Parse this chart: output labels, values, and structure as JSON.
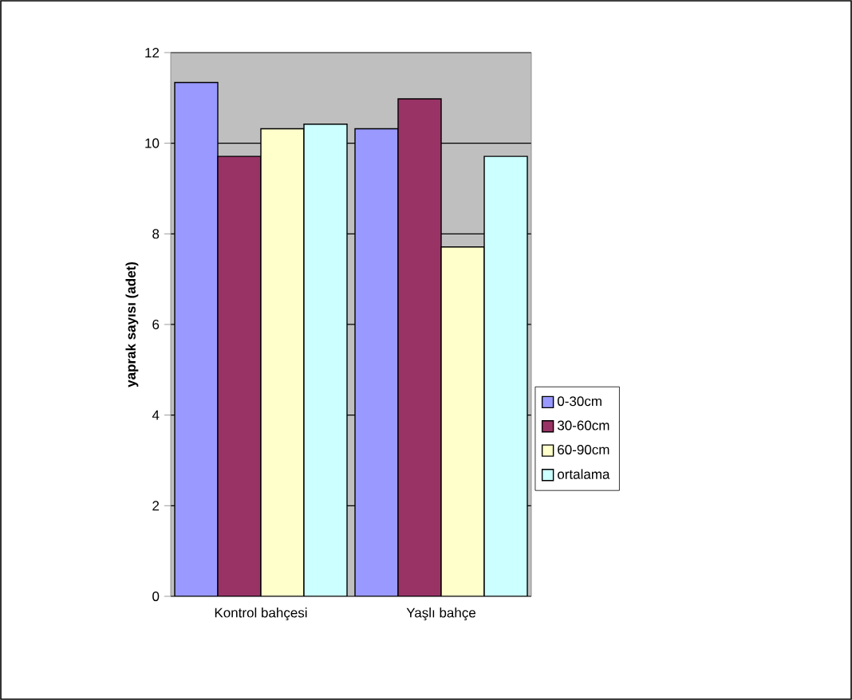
{
  "chart_data": {
    "type": "bar",
    "ylabel": "yaprak sayısı (adet)",
    "categories": [
      "Kontrol bahçesi",
      "Yaşlı bahçe"
    ],
    "series": [
      {
        "name": "0-30cm",
        "color": "#9999ff",
        "values": [
          11.34,
          10.32
        ]
      },
      {
        "name": "30-60cm",
        "color": "#993366",
        "values": [
          9.71,
          10.98
        ]
      },
      {
        "name": "60-90cm",
        "color": "#ffffcc",
        "values": [
          10.32,
          7.71
        ]
      },
      {
        "name": "ortalama",
        "color": "#ccffff",
        "values": [
          10.42,
          9.71
        ]
      }
    ],
    "ylim": [
      0,
      12
    ],
    "yticks": [
      0,
      2,
      4,
      6,
      8,
      10,
      12
    ],
    "grid": "y",
    "legend": "right"
  }
}
